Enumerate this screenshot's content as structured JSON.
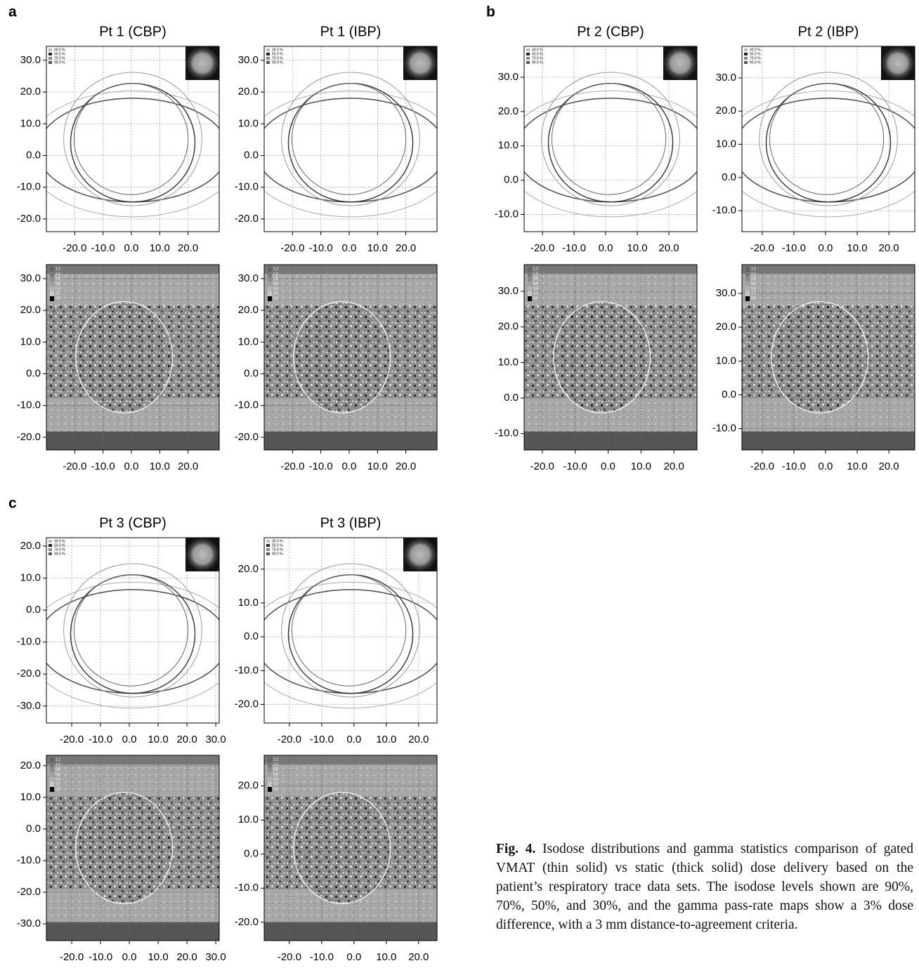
{
  "isodose_legend": [
    "30.0 %",
    "50.0 %",
    "70.0 %",
    "90.0 %"
  ],
  "gamma_legend": [
    "1.2",
    "1.0",
    "0.8",
    "0.6",
    "0.4",
    "0.2",
    "0.0"
  ],
  "panels": [
    {
      "label": "a",
      "plots": [
        {
          "kind": "isodose",
          "title": "Pt 1 (CBP)",
          "xlim": [
            -30,
            31
          ],
          "ylim": [
            -24,
            34.4
          ],
          "xticks": [
            {
              "value": -20,
              "label": "-20.0"
            },
            {
              "value": -10,
              "label": "-10.0"
            },
            {
              "value": 0,
              "label": "0.0"
            },
            {
              "value": 10,
              "label": "10.0"
            },
            {
              "value": 20,
              "label": "20.0"
            }
          ],
          "yticks": [
            {
              "value": 30,
              "label": "30.0"
            },
            {
              "value": 20,
              "label": "20.0"
            },
            {
              "value": 10,
              "label": "10.0"
            },
            {
              "value": 0,
              "label": "0.0"
            },
            {
              "value": -10,
              "label": "-10.0"
            },
            {
              "value": -20,
              "label": "-20.0"
            }
          ]
        },
        {
          "kind": "isodose",
          "title": "Pt 1 (IBP)",
          "xlim": [
            -30,
            31
          ],
          "ylim": [
            -24,
            34.4
          ],
          "xticks": [
            {
              "value": -20,
              "label": "-20.0"
            },
            {
              "value": -10,
              "label": "-10.0"
            },
            {
              "value": 0,
              "label": "0.0"
            },
            {
              "value": 10,
              "label": "10.0"
            },
            {
              "value": 20,
              "label": "20.0"
            }
          ],
          "yticks": [
            {
              "value": 30,
              "label": "30.0"
            },
            {
              "value": 20,
              "label": "20.0"
            },
            {
              "value": 10,
              "label": "10.0"
            },
            {
              "value": 0,
              "label": "0.0"
            },
            {
              "value": -10,
              "label": "-10.0"
            },
            {
              "value": -20,
              "label": "-20.0"
            }
          ]
        },
        {
          "kind": "gamma",
          "xlim": [
            -30,
            31
          ],
          "ylim": [
            -24,
            34.4
          ],
          "xticks": [
            {
              "value": -20,
              "label": "-20.0"
            },
            {
              "value": -10,
              "label": "-10.0"
            },
            {
              "value": 0,
              "label": "0.0"
            },
            {
              "value": 10,
              "label": "10.0"
            },
            {
              "value": 20,
              "label": "20.0"
            }
          ],
          "yticks": [
            {
              "value": 30,
              "label": "30.0"
            },
            {
              "value": 20,
              "label": "20.0"
            },
            {
              "value": 10,
              "label": "10.0"
            },
            {
              "value": 0,
              "label": "0.0"
            },
            {
              "value": -10,
              "label": "-10.0"
            },
            {
              "value": -20,
              "label": "-20.0"
            }
          ]
        },
        {
          "kind": "gamma",
          "xlim": [
            -30,
            31
          ],
          "ylim": [
            -24,
            34.4
          ],
          "xticks": [
            {
              "value": -20,
              "label": "-20.0"
            },
            {
              "value": -10,
              "label": "-10.0"
            },
            {
              "value": 0,
              "label": "0.0"
            },
            {
              "value": 10,
              "label": "10.0"
            },
            {
              "value": 20,
              "label": "20.0"
            }
          ],
          "yticks": [
            {
              "value": 30,
              "label": "30.0"
            },
            {
              "value": 20,
              "label": "20.0"
            },
            {
              "value": 10,
              "label": "10.0"
            },
            {
              "value": 0,
              "label": "0.0"
            },
            {
              "value": -10,
              "label": "-10.0"
            },
            {
              "value": -20,
              "label": "-20.0"
            }
          ]
        }
      ]
    },
    {
      "label": "b",
      "plots": [
        {
          "kind": "isodose",
          "title": "Pt 2 (CBP)",
          "xlim": [
            -25.8,
            28.9
          ],
          "ylim": [
            -15,
            39
          ],
          "xticks": [
            {
              "value": -20,
              "label": "-20.0"
            },
            {
              "value": -10,
              "label": "-10.0"
            },
            {
              "value": 0,
              "label": "0.0"
            },
            {
              "value": 10,
              "label": "10.0"
            },
            {
              "value": 20,
              "label": "20.0"
            }
          ],
          "yticks": [
            {
              "value": 30,
              "label": "30.0"
            },
            {
              "value": 20,
              "label": "20.0"
            },
            {
              "value": 10,
              "label": "10.0"
            },
            {
              "value": 0,
              "label": "0.0"
            },
            {
              "value": -10,
              "label": "-10.0"
            }
          ]
        },
        {
          "kind": "isodose",
          "title": "Pt 2 (IBP)",
          "xlim": [
            -26.4,
            28.2
          ],
          "ylim": [
            -16.3,
            39.5
          ],
          "xticks": [
            {
              "value": -20,
              "label": "-20.0"
            },
            {
              "value": -10,
              "label": "-10.0"
            },
            {
              "value": 0,
              "label": "0.0"
            },
            {
              "value": 10,
              "label": "10.0"
            },
            {
              "value": 20,
              "label": "20.0"
            }
          ],
          "yticks": [
            {
              "value": 30,
              "label": "30.0"
            },
            {
              "value": 20,
              "label": "20.0"
            },
            {
              "value": 10,
              "label": "10.0"
            },
            {
              "value": 0,
              "label": "0.0"
            },
            {
              "value": -10,
              "label": "-10.0"
            }
          ]
        },
        {
          "kind": "gamma",
          "xlim": [
            -25.5,
            27
          ],
          "ylim": [
            -14.6,
            37.5
          ],
          "xticks": [
            {
              "value": -20,
              "label": "-20.0"
            },
            {
              "value": -10,
              "label": "-10.0"
            },
            {
              "value": 0,
              "label": "0.0"
            },
            {
              "value": 10,
              "label": "10.0"
            },
            {
              "value": 20,
              "label": "20.0"
            }
          ],
          "yticks": [
            {
              "value": 30,
              "label": "30.0"
            },
            {
              "value": 20,
              "label": "20.0"
            },
            {
              "value": 10,
              "label": "10.0"
            },
            {
              "value": 0,
              "label": "0.0"
            },
            {
              "value": -10,
              "label": "-10.0"
            }
          ]
        },
        {
          "kind": "gamma",
          "xlim": [
            -26.4,
            28.2
          ],
          "ylim": [
            -16.3,
            38.5
          ],
          "xticks": [
            {
              "value": -20,
              "label": "-20.0"
            },
            {
              "value": -10,
              "label": "-10.0"
            },
            {
              "value": 0,
              "label": "0.0"
            },
            {
              "value": 10,
              "label": "10.0"
            },
            {
              "value": 20,
              "label": "20.0"
            }
          ],
          "yticks": [
            {
              "value": 30,
              "label": "30.0"
            },
            {
              "value": 20,
              "label": "20.0"
            },
            {
              "value": 10,
              "label": "10.0"
            },
            {
              "value": 0,
              "label": "0.0"
            },
            {
              "value": -10,
              "label": "-10.0"
            }
          ]
        }
      ]
    },
    {
      "label": "c",
      "plots": [
        {
          "kind": "isodose",
          "title": "Pt 3 (CBP)",
          "xlim": [
            -28.8,
            31.2
          ],
          "ylim": [
            -35.3,
            22.6
          ],
          "xticks": [
            {
              "value": -20,
              "label": "-20.0"
            },
            {
              "value": -10,
              "label": "-10.0"
            },
            {
              "value": 0,
              "label": "0.0"
            },
            {
              "value": 10,
              "label": "10.0"
            },
            {
              "value": 20,
              "label": "20.0"
            },
            {
              "value": 30,
              "label": "30.0"
            }
          ],
          "yticks": [
            {
              "value": 20,
              "label": "20.0"
            },
            {
              "value": 10,
              "label": "10.0"
            },
            {
              "value": 0,
              "label": "0.0"
            },
            {
              "value": -10,
              "label": "-10.0"
            },
            {
              "value": -20,
              "label": "-20.0"
            },
            {
              "value": -30,
              "label": "-30.0"
            }
          ]
        },
        {
          "kind": "isodose",
          "title": "Pt 3 (IBP)",
          "xlim": [
            -27.8,
            25.7
          ],
          "ylim": [
            -25.5,
            29.3
          ],
          "xticks": [
            {
              "value": -20,
              "label": "-20.0"
            },
            {
              "value": -10,
              "label": "-10.0"
            },
            {
              "value": 0,
              "label": "0.0"
            },
            {
              "value": 10,
              "label": "10.0"
            },
            {
              "value": 20,
              "label": "20.0"
            }
          ],
          "yticks": [
            {
              "value": 20,
              "label": "20.0"
            },
            {
              "value": 10,
              "label": "10.0"
            },
            {
              "value": 0,
              "label": "0.0"
            },
            {
              "value": -10,
              "label": "-10.0"
            },
            {
              "value": -20,
              "label": "-20.0"
            }
          ]
        },
        {
          "kind": "gamma",
          "xlim": [
            -28.8,
            31.2
          ],
          "ylim": [
            -35.3,
            23.3
          ],
          "xticks": [
            {
              "value": -20,
              "label": "-20.0"
            },
            {
              "value": -10,
              "label": "-10.0"
            },
            {
              "value": 0,
              "label": "0.0"
            },
            {
              "value": 10,
              "label": "10.0"
            },
            {
              "value": 20,
              "label": "20.0"
            },
            {
              "value": 30,
              "label": "30.0"
            }
          ],
          "yticks": [
            {
              "value": 20,
              "label": "20.0"
            },
            {
              "value": 10,
              "label": "10.0"
            },
            {
              "value": 0,
              "label": "0.0"
            },
            {
              "value": -10,
              "label": "-10.0"
            },
            {
              "value": -20,
              "label": "-20.0"
            },
            {
              "value": -30,
              "label": "-30.0"
            }
          ]
        },
        {
          "kind": "gamma",
          "xlim": [
            -27.8,
            25.7
          ],
          "ylim": [
            -25.4,
            29
          ],
          "xticks": [
            {
              "value": -20,
              "label": "-20.0"
            },
            {
              "value": -10,
              "label": "-10.0"
            },
            {
              "value": 0,
              "label": "0.0"
            },
            {
              "value": 10,
              "label": "10.0"
            },
            {
              "value": 20,
              "label": "20.0"
            }
          ],
          "yticks": [
            {
              "value": 20,
              "label": "20.0"
            },
            {
              "value": 10,
              "label": "10.0"
            },
            {
              "value": 0,
              "label": "0.0"
            },
            {
              "value": -10,
              "label": "-10.0"
            },
            {
              "value": -20,
              "label": "-20.0"
            }
          ]
        }
      ]
    }
  ],
  "caption": {
    "label": "Fig. 4.",
    "text": "Isodose distributions and gamma statistics comparison of gated VMAT (thin solid) vs static (thick solid) dose delivery based on the patient’s respiratory trace data sets. The isodose levels shown are 90%, 70%, 50%, and 30%, and the gamma pass-rate maps show a 3% dose difference, with a 3 mm distance-to-agreement criteria."
  }
}
